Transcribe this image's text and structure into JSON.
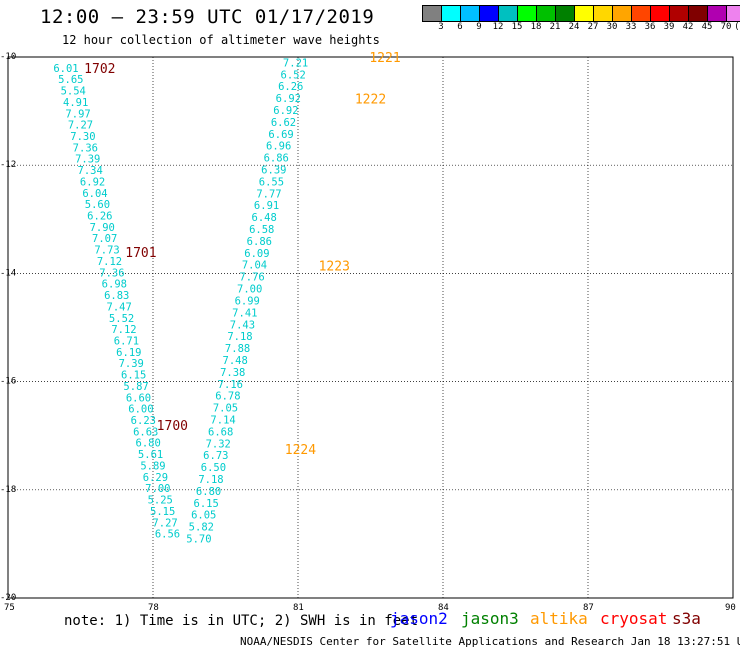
{
  "header": {
    "title": "12:00 – 23:59 UTC 01/17/2019",
    "subtitle": "12 hour collection of altimeter wave heights"
  },
  "colorbar": {
    "colors": [
      "#808080",
      "#00ffff",
      "#00bfff",
      "#0000ff",
      "#00c0c0",
      "#00ff00",
      "#00c000",
      "#008000",
      "#ffff00",
      "#ffd700",
      "#ffa500",
      "#ff4500",
      "#ff0000",
      "#b00000",
      "#800000",
      "#b000b0",
      "#ee82ee",
      "#ff69b4",
      "#000000"
    ],
    "labels": [
      "3",
      "6",
      "9",
      "12",
      "15",
      "18",
      "21",
      "24",
      "27",
      "30",
      "33",
      "36",
      "39",
      "42",
      "45",
      "70",
      "(ft)"
    ]
  },
  "chart_data": {
    "type": "scatter",
    "title": "12 hour collection of altimeter wave heights",
    "xlim": [
      75,
      90
    ],
    "ylim": [
      -20,
      -10
    ],
    "x_ticks": [
      "75",
      "78",
      "81",
      "84",
      "87",
      "90"
    ],
    "y_ticks": [
      "-10",
      "-12",
      "-14",
      "-16",
      "-18",
      "-20"
    ],
    "grid": true,
    "series": [
      {
        "name": "jason2",
        "color": "#00cccc",
        "points": [
          {
            "lon": 76.2,
            "lat": -10.2,
            "swh": "6.01"
          },
          {
            "lon": 76.3,
            "lat": -10.41,
            "swh": "5.65"
          },
          {
            "lon": 76.35,
            "lat": -10.62,
            "swh": "5.54"
          },
          {
            "lon": 76.4,
            "lat": -10.83,
            "swh": "4.91"
          },
          {
            "lon": 76.45,
            "lat": -11.04,
            "swh": "7.97"
          },
          {
            "lon": 76.5,
            "lat": -11.25,
            "swh": "7.27"
          },
          {
            "lon": 76.55,
            "lat": -11.46,
            "swh": "7.30"
          },
          {
            "lon": 76.6,
            "lat": -11.67,
            "swh": "7.36"
          },
          {
            "lon": 76.65,
            "lat": -11.88,
            "swh": "7.39"
          },
          {
            "lon": 76.7,
            "lat": -12.09,
            "swh": "7.34"
          },
          {
            "lon": 76.75,
            "lat": -12.3,
            "swh": "6.92"
          },
          {
            "lon": 76.8,
            "lat": -12.51,
            "swh": "6.04"
          },
          {
            "lon": 76.85,
            "lat": -12.72,
            "swh": "5.60"
          },
          {
            "lon": 76.9,
            "lat": -12.93,
            "swh": "6.26"
          },
          {
            "lon": 76.95,
            "lat": -13.14,
            "swh": "7.90"
          },
          {
            "lon": 77.0,
            "lat": -13.35,
            "swh": "7.07"
          },
          {
            "lon": 77.05,
            "lat": -13.56,
            "swh": "7.73"
          },
          {
            "lon": 77.1,
            "lat": -13.77,
            "swh": "7.12"
          },
          {
            "lon": 77.15,
            "lat": -13.98,
            "swh": "7.36"
          },
          {
            "lon": 77.2,
            "lat": -14.19,
            "swh": "6.98"
          },
          {
            "lon": 77.25,
            "lat": -14.4,
            "swh": "6.83"
          },
          {
            "lon": 77.3,
            "lat": -14.61,
            "swh": "7.47"
          },
          {
            "lon": 77.35,
            "lat": -14.82,
            "swh": "5.52"
          },
          {
            "lon": 77.4,
            "lat": -15.03,
            "swh": "7.12"
          },
          {
            "lon": 77.45,
            "lat": -15.24,
            "swh": "6.71"
          },
          {
            "lon": 77.5,
            "lat": -15.45,
            "swh": "6.19"
          },
          {
            "lon": 77.55,
            "lat": -15.66,
            "swh": "7.39"
          },
          {
            "lon": 77.6,
            "lat": -15.87,
            "swh": "6.15"
          },
          {
            "lon": 77.65,
            "lat": -16.08,
            "swh": "5.87"
          },
          {
            "lon": 77.7,
            "lat": -16.29,
            "swh": "6.60"
          },
          {
            "lon": 77.75,
            "lat": -16.5,
            "swh": "6.00"
          },
          {
            "lon": 77.8,
            "lat": -16.71,
            "swh": "6.23"
          },
          {
            "lon": 77.85,
            "lat": -16.92,
            "swh": "6.63"
          },
          {
            "lon": 77.9,
            "lat": -17.13,
            "swh": "6.80"
          },
          {
            "lon": 77.95,
            "lat": -17.34,
            "swh": "5.61"
          },
          {
            "lon": 78.0,
            "lat": -17.55,
            "swh": "5.89"
          },
          {
            "lon": 78.05,
            "lat": -17.76,
            "swh": "6.29"
          },
          {
            "lon": 78.1,
            "lat": -17.97,
            "swh": "7.00"
          },
          {
            "lon": 78.15,
            "lat": -18.18,
            "swh": "5.25"
          },
          {
            "lon": 78.2,
            "lat": -18.39,
            "swh": "5.15"
          },
          {
            "lon": 78.25,
            "lat": -18.6,
            "swh": "7.27"
          },
          {
            "lon": 78.3,
            "lat": -18.81,
            "swh": "6.56"
          },
          {
            "lon": 80.95,
            "lat": -10.1,
            "swh": "7.21"
          },
          {
            "lon": 80.9,
            "lat": -10.32,
            "swh": "6.52"
          },
          {
            "lon": 80.85,
            "lat": -10.54,
            "swh": "6.26"
          },
          {
            "lon": 80.8,
            "lat": -10.76,
            "swh": "6.92"
          },
          {
            "lon": 80.75,
            "lat": -10.98,
            "swh": "6.92"
          },
          {
            "lon": 80.7,
            "lat": -11.2,
            "swh": "6.62"
          },
          {
            "lon": 80.65,
            "lat": -11.42,
            "swh": "6.69"
          },
          {
            "lon": 80.6,
            "lat": -11.64,
            "swh": "6.96"
          },
          {
            "lon": 80.55,
            "lat": -11.86,
            "swh": "6.86"
          },
          {
            "lon": 80.5,
            "lat": -12.08,
            "swh": "6.39"
          },
          {
            "lon": 80.45,
            "lat": -12.3,
            "swh": "6.55"
          },
          {
            "lon": 80.4,
            "lat": -12.52,
            "swh": "7.77"
          },
          {
            "lon": 80.35,
            "lat": -12.74,
            "swh": "6.91"
          },
          {
            "lon": 80.3,
            "lat": -12.96,
            "swh": "6.48"
          },
          {
            "lon": 80.25,
            "lat": -13.18,
            "swh": "6.58"
          },
          {
            "lon": 80.2,
            "lat": -13.4,
            "swh": "6.86"
          },
          {
            "lon": 80.15,
            "lat": -13.62,
            "swh": "6.09"
          },
          {
            "lon": 80.1,
            "lat": -13.84,
            "swh": "7.04"
          },
          {
            "lon": 80.05,
            "lat": -14.06,
            "swh": "7.76"
          },
          {
            "lon": 80.0,
            "lat": -14.28,
            "swh": "7.00"
          },
          {
            "lon": 79.95,
            "lat": -14.5,
            "swh": "6.99"
          },
          {
            "lon": 79.9,
            "lat": -14.72,
            "swh": "7.41"
          },
          {
            "lon": 79.85,
            "lat": -14.94,
            "swh": "7.43"
          },
          {
            "lon": 79.8,
            "lat": -15.16,
            "swh": "7.18"
          },
          {
            "lon": 79.75,
            "lat": -15.38,
            "swh": "7.88"
          },
          {
            "lon": 79.7,
            "lat": -15.6,
            "swh": "7.48"
          },
          {
            "lon": 79.65,
            "lat": -15.82,
            "swh": "7.38"
          },
          {
            "lon": 79.6,
            "lat": -16.04,
            "swh": "7.16"
          },
          {
            "lon": 79.55,
            "lat": -16.26,
            "swh": "6.78"
          },
          {
            "lon": 79.5,
            "lat": -16.48,
            "swh": "7.05"
          },
          {
            "lon": 79.45,
            "lat": -16.7,
            "swh": "7.14"
          },
          {
            "lon": 79.4,
            "lat": -16.92,
            "swh": "6.68"
          },
          {
            "lon": 79.35,
            "lat": -17.14,
            "swh": "7.32"
          },
          {
            "lon": 79.3,
            "lat": -17.36,
            "swh": "6.73"
          },
          {
            "lon": 79.25,
            "lat": -17.58,
            "swh": "6.50"
          },
          {
            "lon": 79.2,
            "lat": -17.8,
            "swh": "7.18"
          },
          {
            "lon": 79.15,
            "lat": -18.02,
            "swh": "6.80"
          },
          {
            "lon": 79.1,
            "lat": -18.24,
            "swh": "6.15"
          },
          {
            "lon": 79.05,
            "lat": -18.46,
            "swh": "6.05"
          },
          {
            "lon": 79.0,
            "lat": -18.68,
            "swh": "5.82"
          },
          {
            "lon": 78.95,
            "lat": -18.9,
            "swh": "5.70"
          }
        ]
      }
    ],
    "time_labels": [
      {
        "text": "1702",
        "lon": 76.9,
        "lat": -10.2,
        "color": "#800000"
      },
      {
        "text": "1701",
        "lon": 77.75,
        "lat": -13.6,
        "color": "#800000"
      },
      {
        "text": "1700",
        "lon": 78.4,
        "lat": -16.8,
        "color": "#800000"
      },
      {
        "text": "1221",
        "lon": 82.8,
        "lat": -10.0,
        "color": "#ff9900"
      },
      {
        "text": "1222",
        "lon": 82.5,
        "lat": -10.77,
        "color": "#ff9900"
      },
      {
        "text": "1223",
        "lon": 81.75,
        "lat": -13.85,
        "color": "#ff9900"
      },
      {
        "text": "1224",
        "lon": 81.05,
        "lat": -17.25,
        "color": "#ff9900"
      }
    ]
  },
  "footer": {
    "note": "note: 1) Time is in UTC; 2) SWH is in feet",
    "satellites": [
      {
        "label": "jason2",
        "color": "#0000ff"
      },
      {
        "label": "jason3",
        "color": "#008000"
      },
      {
        "label": "altika",
        "color": "#ff9900"
      },
      {
        "label": "cryosat",
        "color": "#ff0000"
      },
      {
        "label": "s3a",
        "color": "#800000"
      }
    ],
    "credit": "NOAA/NESDIS Center for Satellite Applications and Research    Jan 18 13:27:51 UTC 2019"
  }
}
